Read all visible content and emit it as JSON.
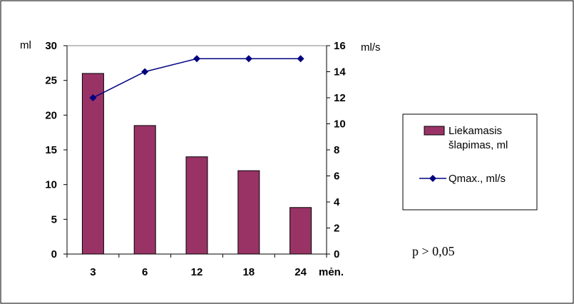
{
  "chart_data": {
    "type": "bar+line",
    "categories": [
      "3",
      "6",
      "12",
      "18",
      "24"
    ],
    "x_unit_label": "mėn.",
    "series": [
      {
        "name": "Liekamasis šlapimas, ml",
        "type": "bar",
        "axis": "left",
        "color": "#993366",
        "values": [
          26,
          18.5,
          14,
          12,
          6.7
        ]
      },
      {
        "name": "Qmax., ml/s",
        "type": "line",
        "axis": "right",
        "color": "#000080",
        "marker": "diamond",
        "values": [
          12,
          14,
          15,
          15,
          15
        ]
      }
    ],
    "left_axis": {
      "label": "ml",
      "ylim": [
        0,
        30
      ],
      "ticks": [
        0,
        5,
        10,
        15,
        20,
        25,
        30
      ]
    },
    "right_axis": {
      "label": "ml/s",
      "ylim": [
        0,
        16
      ],
      "ticks": [
        0,
        2,
        4,
        6,
        8,
        10,
        12,
        14,
        16
      ]
    },
    "legend": {
      "position": "right",
      "entries": [
        [
          "Liekamasis",
          "šlapimas, ml"
        ],
        [
          "Qmax., ml/s"
        ]
      ]
    },
    "annotation": "p > 0,05",
    "gridlines": false
  }
}
